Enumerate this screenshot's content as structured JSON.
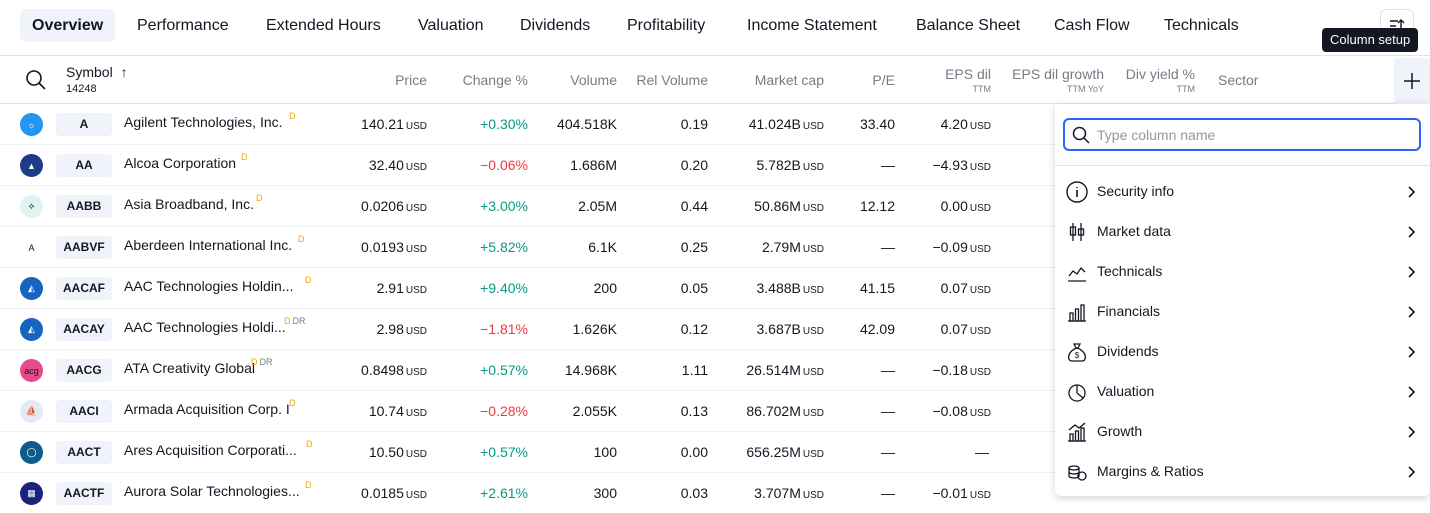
{
  "tabs": [
    "Overview",
    "Performance",
    "Extended Hours",
    "Valuation",
    "Dividends",
    "Profitability",
    "Income Statement",
    "Balance Sheet",
    "Cash Flow",
    "Technicals"
  ],
  "header": {
    "symbol": "Symbol",
    "sort_arrow": "↑",
    "count": "14248",
    "price": "Price",
    "change": "Change %",
    "volume": "Volume",
    "rel_volume": "Rel Volume",
    "market_cap": "Market cap",
    "pe": "P/E",
    "eps": "EPS dil",
    "eps_sub": "TTM",
    "eps_growth": "EPS dil growth",
    "eps_growth_sub": "TTM YoY",
    "div_yield": "Div yield %",
    "div_yield_sub": "TTM",
    "sector": "Sector"
  },
  "tooltip": "Column setup",
  "currency": "USD",
  "rows": [
    {
      "ticker": "A",
      "name": "Agilent Technologies, Inc.",
      "flags": "D",
      "dr": "",
      "price": "140.21",
      "change": "+0.30%",
      "dir": "pos",
      "volume": "404.518K",
      "relvol": "0.19",
      "mcap": "41.024B",
      "pe": "33.40",
      "eps": "4.20",
      "eps_cur": "USD",
      "logo_bg": "#2196f3",
      "logo_text": "☼"
    },
    {
      "ticker": "AA",
      "name": "Alcoa Corporation",
      "flags": "D",
      "dr": "",
      "price": "32.40",
      "change": "−0.06%",
      "dir": "neg",
      "volume": "1.686M",
      "relvol": "0.20",
      "mcap": "5.782B",
      "pe": "—",
      "eps": "−4.93",
      "eps_cur": "USD",
      "logo_bg": "#1e3a8a",
      "logo_text": "▲"
    },
    {
      "ticker": "AABB",
      "name": "Asia Broadband, Inc.",
      "flags": "D",
      "dr": "",
      "price": "0.0206",
      "change": "+3.00%",
      "dir": "pos",
      "volume": "2.05M",
      "relvol": "0.44",
      "mcap": "50.86M",
      "pe": "12.12",
      "eps": "0.00",
      "eps_cur": "USD",
      "logo_bg": "#e0f2f1",
      "logo_text": "⟡"
    },
    {
      "ticker": "AABVF",
      "name": "Aberdeen International Inc.",
      "flags": "D",
      "dr": "",
      "price": "0.0193",
      "change": "+5.82%",
      "dir": "pos",
      "volume": "6.1K",
      "relvol": "0.25",
      "mcap": "2.79M",
      "pe": "—",
      "eps": "−0.09",
      "eps_cur": "USD",
      "logo_bg": "#ffffff",
      "logo_text": "A"
    },
    {
      "ticker": "AACAF",
      "name": "AAC Technologies Holdin...",
      "flags": "D",
      "dr": "",
      "price": "2.91",
      "change": "+9.40%",
      "dir": "pos",
      "volume": "200",
      "relvol": "0.05",
      "mcap": "3.488B",
      "pe": "41.15",
      "eps": "0.07",
      "eps_cur": "USD",
      "logo_bg": "#1565c0",
      "logo_text": "◭"
    },
    {
      "ticker": "AACAY",
      "name": "AAC Technologies Holdi...",
      "flags": "D",
      "dr": "DR",
      "price": "2.98",
      "change": "−1.81%",
      "dir": "neg",
      "volume": "1.626K",
      "relvol": "0.12",
      "mcap": "3.687B",
      "pe": "42.09",
      "eps": "0.07",
      "eps_cur": "USD",
      "logo_bg": "#1565c0",
      "logo_text": "◭"
    },
    {
      "ticker": "AACG",
      "name": "ATA Creativity Global",
      "flags": "D",
      "dr": "DR",
      "price": "0.8498",
      "change": "+0.57%",
      "dir": "pos",
      "volume": "14.968K",
      "relvol": "1.11",
      "mcap": "26.514M",
      "pe": "—",
      "eps": "−0.18",
      "eps_cur": "USD",
      "logo_bg": "#e64a8a",
      "logo_text": "acg"
    },
    {
      "ticker": "AACI",
      "name": "Armada Acquisition Corp. I",
      "flags": "D",
      "dr": "",
      "price": "10.74",
      "change": "−0.28%",
      "dir": "neg",
      "volume": "2.055K",
      "relvol": "0.13",
      "mcap": "86.702M",
      "pe": "—",
      "eps": "−0.08",
      "eps_cur": "USD",
      "logo_bg": "#e3eaf3",
      "logo_text": "⛵"
    },
    {
      "ticker": "AACT",
      "name": "Ares Acquisition Corporati...",
      "flags": "D",
      "dr": "",
      "price": "10.50",
      "change": "+0.57%",
      "dir": "pos",
      "volume": "100",
      "relvol": "0.00",
      "mcap": "656.25M",
      "pe": "—",
      "eps": "—",
      "eps_cur": "",
      "logo_bg": "#0d5c8c",
      "logo_text": "◯"
    },
    {
      "ticker": "AACTF",
      "name": "Aurora Solar Technologies...",
      "flags": "D",
      "dr": "",
      "price": "0.0185",
      "change": "+2.61%",
      "dir": "pos",
      "volume": "300",
      "relvol": "0.03",
      "mcap": "3.707M",
      "pe": "—",
      "eps": "−0.01",
      "eps_cur": "USD",
      "logo_bg": "#1a237e",
      "logo_text": "▦"
    }
  ],
  "panel": {
    "placeholder": "Type column name",
    "items": [
      {
        "label": "Security info",
        "icon": "info-icon"
      },
      {
        "label": "Market data",
        "icon": "candlestick-icon"
      },
      {
        "label": "Technicals",
        "icon": "chart-line-icon"
      },
      {
        "label": "Financials",
        "icon": "bar-chart-icon"
      },
      {
        "label": "Dividends",
        "icon": "money-bag-icon"
      },
      {
        "label": "Valuation",
        "icon": "pie-chart-icon"
      },
      {
        "label": "Growth",
        "icon": "growth-icon"
      },
      {
        "label": "Margins & Ratios",
        "icon": "coins-icon"
      }
    ]
  }
}
